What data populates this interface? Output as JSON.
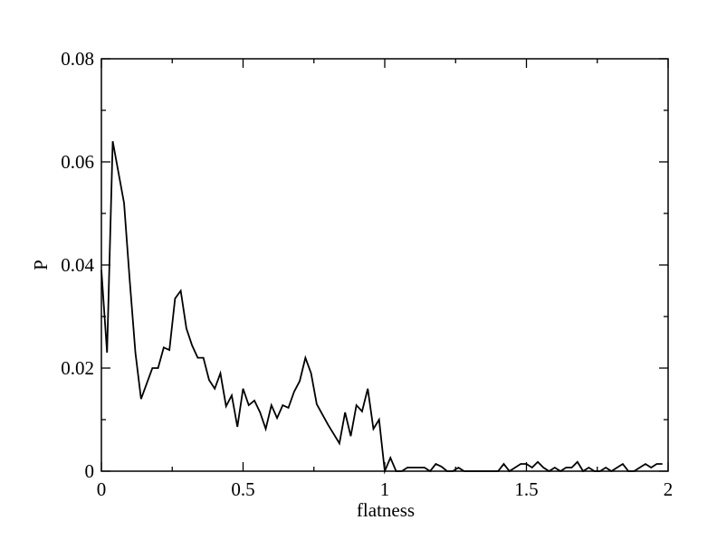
{
  "chart_data": {
    "type": "line",
    "xlabel": "flatness",
    "ylabel": "P",
    "x": [
      0,
      0.02,
      0.04,
      0.06,
      0.08,
      0.1,
      0.12,
      0.14,
      0.16,
      0.18,
      0.2,
      0.22,
      0.24,
      0.26,
      0.28,
      0.3,
      0.32,
      0.34,
      0.36,
      0.38,
      0.4,
      0.42,
      0.44,
      0.46,
      0.48,
      0.5,
      0.52,
      0.54,
      0.56,
      0.58,
      0.6,
      0.62,
      0.64,
      0.66,
      0.68,
      0.7,
      0.72,
      0.74,
      0.76,
      0.78,
      0.8,
      0.82,
      0.84,
      0.86,
      0.88,
      0.9,
      0.92,
      0.94,
      0.96,
      0.98,
      1,
      1.02,
      1.04,
      1.06,
      1.08,
      1.1,
      1.12,
      1.14,
      1.16,
      1.18,
      1.2,
      1.22,
      1.24,
      1.26,
      1.28,
      1.3,
      1.32,
      1.34,
      1.36,
      1.38,
      1.4,
      1.42,
      1.44,
      1.46,
      1.48,
      1.5,
      1.52,
      1.54,
      1.56,
      1.58,
      1.6,
      1.62,
      1.64,
      1.66,
      1.68,
      1.7,
      1.72,
      1.74,
      1.76,
      1.78,
      1.8,
      1.82,
      1.84,
      1.86,
      1.88,
      1.9,
      1.92,
      1.94,
      1.96,
      1.98
    ],
    "series": [
      {
        "color": "#000000",
        "values": [
          0.039,
          0.023,
          0.064,
          0.058,
          0.052,
          0.037,
          0.023,
          0.014,
          0.017,
          0.02,
          0.02,
          0.024,
          0.0235,
          0.0335,
          0.035,
          0.0277,
          0.0244,
          0.022,
          0.022,
          0.0177,
          0.016,
          0.019,
          0.0126,
          0.0147,
          0.0086,
          0.016,
          0.0128,
          0.0137,
          0.0114,
          0.0082,
          0.0128,
          0.0103,
          0.0128,
          0.0123,
          0.0154,
          0.0175,
          0.022,
          0.019,
          0.013,
          0.011,
          0.009,
          0.0072,
          0.0054,
          0.0114,
          0.0068,
          0.0128,
          0.0116,
          0.016,
          0.0082,
          0.01,
          0,
          0.0026,
          0,
          0,
          0.0007,
          0.0007,
          0.0007,
          0.0007,
          0,
          0.0014,
          0.0009,
          0,
          0,
          0.0007,
          0,
          0,
          0,
          0,
          0,
          0,
          0,
          0.0014,
          0,
          0.0007,
          0.0014,
          0.0014,
          0.0007,
          0.0018,
          0.0007,
          0,
          0.0007,
          0,
          0.0007,
          0.0007,
          0.0018,
          0,
          0.0007,
          0,
          0,
          0.0007,
          0,
          0.0007,
          0.0014,
          0,
          0,
          0.0007,
          0.0014,
          0.0007,
          0.0014,
          0.0014
        ]
      }
    ],
    "xlim": [
      0,
      2
    ],
    "xticks": [
      0,
      0.5,
      1,
      1.5,
      2
    ],
    "xminorticks": [
      0.25,
      0.75,
      1.25,
      1.75
    ],
    "ylim": [
      0,
      0.08
    ],
    "yticks": [
      0,
      0.02,
      0.04,
      0.06,
      0.08
    ],
    "yminorticks": [
      0.01,
      0.03,
      0.05,
      0.07
    ],
    "grid": false
  }
}
